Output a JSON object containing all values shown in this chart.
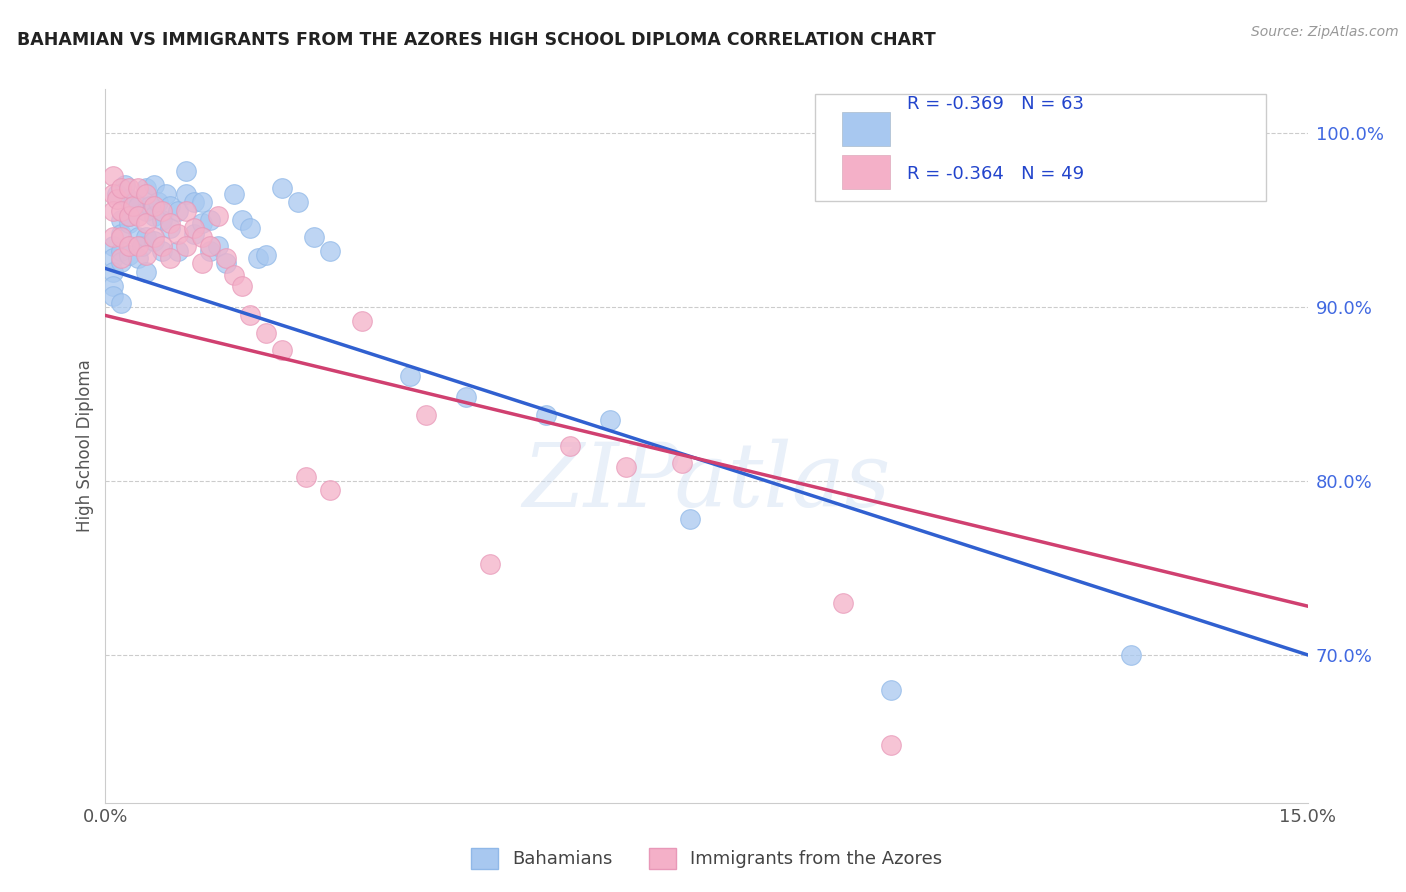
{
  "title": "BAHAMIAN VS IMMIGRANTS FROM THE AZORES HIGH SCHOOL DIPLOMA CORRELATION CHART",
  "source": "Source: ZipAtlas.com",
  "ylabel": "High School Diploma",
  "xlim": [
    0.0,
    0.15
  ],
  "ylim": [
    0.615,
    1.025
  ],
  "xticks": [
    0.0,
    0.03,
    0.06,
    0.09,
    0.12,
    0.15
  ],
  "xticklabels": [
    "0.0%",
    "",
    "",
    "",
    "",
    "15.0%"
  ],
  "yticks_right": [
    0.7,
    0.8,
    0.9,
    1.0
  ],
  "ytick_labels_right": [
    "70.0%",
    "80.0%",
    "90.0%",
    "100.0%"
  ],
  "blue_R": "-0.369",
  "blue_N": "63",
  "pink_R": "-0.364",
  "pink_N": "49",
  "blue_scatter_color": "#a8c8f0",
  "pink_scatter_color": "#f4b0c8",
  "blue_line_color": "#3060d0",
  "pink_line_color": "#d04070",
  "legend_label_blue": "Bahamians",
  "legend_label_pink": "Immigrants from the Azores",
  "watermark": "ZIPatlas",
  "blue_line_x0": 0.0,
  "blue_line_y0": 0.922,
  "blue_line_x1": 0.15,
  "blue_line_y1": 0.7,
  "pink_line_x0": 0.0,
  "pink_line_y0": 0.895,
  "pink_line_x1": 0.15,
  "pink_line_y1": 0.728,
  "blue_x": [
    0.001,
    0.001,
    0.001,
    0.001,
    0.001,
    0.0015,
    0.002,
    0.002,
    0.002,
    0.002,
    0.002,
    0.0025,
    0.003,
    0.003,
    0.003,
    0.003,
    0.0035,
    0.004,
    0.004,
    0.004,
    0.0045,
    0.005,
    0.005,
    0.005,
    0.005,
    0.0055,
    0.006,
    0.006,
    0.006,
    0.0065,
    0.007,
    0.007,
    0.0075,
    0.008,
    0.008,
    0.009,
    0.009,
    0.01,
    0.01,
    0.011,
    0.011,
    0.012,
    0.012,
    0.013,
    0.013,
    0.014,
    0.015,
    0.016,
    0.017,
    0.018,
    0.019,
    0.02,
    0.022,
    0.024,
    0.026,
    0.028,
    0.038,
    0.045,
    0.055,
    0.063,
    0.073,
    0.098,
    0.128
  ],
  "blue_y": [
    0.935,
    0.928,
    0.92,
    0.912,
    0.906,
    0.965,
    0.95,
    0.942,
    0.932,
    0.926,
    0.902,
    0.97,
    0.962,
    0.948,
    0.93,
    0.952,
    0.96,
    0.958,
    0.94,
    0.928,
    0.935,
    0.968,
    0.955,
    0.94,
    0.92,
    0.958,
    0.97,
    0.952,
    0.938,
    0.96,
    0.95,
    0.932,
    0.965,
    0.958,
    0.945,
    0.955,
    0.932,
    0.978,
    0.965,
    0.96,
    0.942,
    0.96,
    0.948,
    0.95,
    0.932,
    0.935,
    0.925,
    0.965,
    0.95,
    0.945,
    0.928,
    0.93,
    0.968,
    0.96,
    0.94,
    0.932,
    0.86,
    0.848,
    0.838,
    0.835,
    0.778,
    0.68,
    0.7
  ],
  "pink_x": [
    0.001,
    0.001,
    0.001,
    0.001,
    0.0015,
    0.002,
    0.002,
    0.002,
    0.002,
    0.003,
    0.003,
    0.003,
    0.0035,
    0.004,
    0.004,
    0.004,
    0.005,
    0.005,
    0.005,
    0.006,
    0.006,
    0.007,
    0.007,
    0.008,
    0.008,
    0.009,
    0.01,
    0.01,
    0.011,
    0.012,
    0.012,
    0.013,
    0.014,
    0.015,
    0.016,
    0.017,
    0.018,
    0.02,
    0.022,
    0.025,
    0.028,
    0.032,
    0.04,
    0.048,
    0.058,
    0.065,
    0.072,
    0.092,
    0.098
  ],
  "pink_y": [
    0.975,
    0.965,
    0.955,
    0.94,
    0.962,
    0.968,
    0.955,
    0.94,
    0.928,
    0.968,
    0.952,
    0.935,
    0.958,
    0.968,
    0.952,
    0.935,
    0.965,
    0.948,
    0.93,
    0.958,
    0.94,
    0.955,
    0.935,
    0.948,
    0.928,
    0.942,
    0.955,
    0.935,
    0.945,
    0.94,
    0.925,
    0.935,
    0.952,
    0.928,
    0.918,
    0.912,
    0.895,
    0.885,
    0.875,
    0.802,
    0.795,
    0.892,
    0.838,
    0.752,
    0.82,
    0.808,
    0.81,
    0.73,
    0.648
  ]
}
